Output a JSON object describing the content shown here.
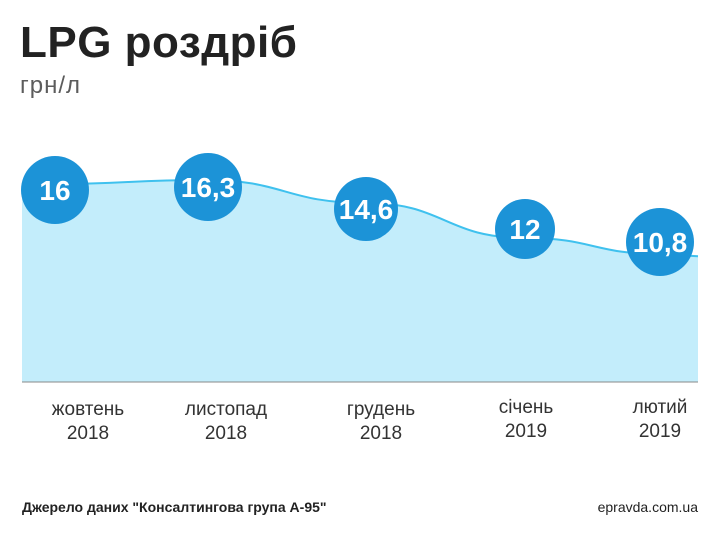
{
  "header": {
    "title": "LPG роздріб",
    "unit": "грн/л"
  },
  "chart_data": {
    "type": "area",
    "categories": [
      {
        "month": "жовтень",
        "year": "2018"
      },
      {
        "month": "листопад",
        "year": "2018"
      },
      {
        "month": "грудень",
        "year": "2018"
      },
      {
        "month": "січень",
        "year": "2019"
      },
      {
        "month": "лютий",
        "year": "2019"
      }
    ],
    "values": [
      16,
      16.3,
      14.6,
      12,
      10.8
    ],
    "value_labels": [
      "16",
      "16,3",
      "14,6",
      "12",
      "10,8"
    ],
    "ylabel": "грн/л",
    "grid": false,
    "colors": {
      "area_fill": "#c3edfb",
      "line": "#3fc1ee",
      "bubble": "#1c93d7",
      "bubble_text": "#ffffff",
      "axis": "#8a8a8a"
    }
  },
  "footer": {
    "source": "Джерело даних \"Консалтингова група А-95\"",
    "site": "epravda.com.ua"
  }
}
